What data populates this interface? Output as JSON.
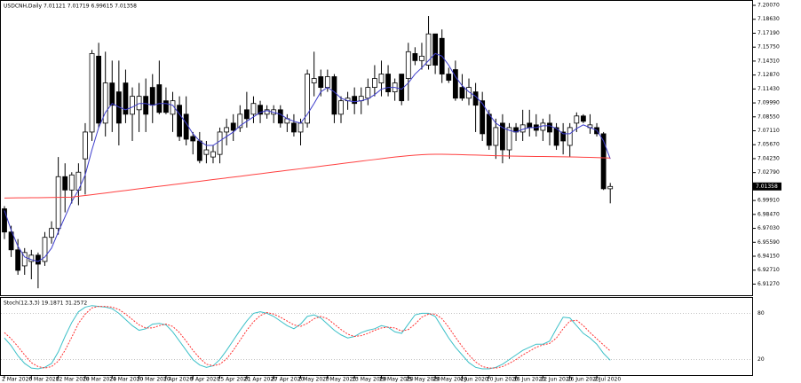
{
  "chart_data": [
    {
      "type": "candlestick",
      "title": "USDCNH,Daily  7.01121 7.01719 6.99615 7.01358",
      "categories": [
        "2 Mar 2020",
        null,
        null,
        null,
        "6 Mar 2020",
        null,
        null,
        null,
        "12 Mar 2020",
        null,
        null,
        null,
        "18 Mar 2020",
        null,
        null,
        null,
        "24 Mar 2020",
        null,
        null,
        null,
        "30 Mar 2020",
        null,
        null,
        null,
        "3 Apr 2020",
        null,
        null,
        null,
        "9 Apr 2020",
        null,
        null,
        null,
        "15 Apr 2020",
        null,
        null,
        null,
        "21 Apr 2020",
        null,
        null,
        null,
        "27 Apr 2020",
        null,
        null,
        null,
        "1 May 2020",
        null,
        null,
        null,
        "7 May 2020",
        null,
        null,
        null,
        "13 May 2020",
        null,
        null,
        null,
        "19 May 2020",
        null,
        null,
        null,
        "25 May 2020",
        null,
        null,
        null,
        "29 May 2020",
        null,
        null,
        null,
        "4 Jun 2020",
        null,
        null,
        null,
        "10 Jun 2020",
        null,
        null,
        null,
        "16 Jun 2020",
        null,
        null,
        null,
        "22 Jun 2020",
        null,
        null,
        null,
        "26 Jun 2020",
        null,
        null,
        null,
        "2 Jul 2020",
        null,
        null
      ],
      "ohlc": [
        [
          6.9905,
          6.9933,
          6.9592,
          6.9665
        ],
        [
          6.9665,
          6.973,
          6.9407,
          6.9481
        ],
        [
          6.9481,
          6.9592,
          6.9223,
          6.9269
        ],
        [
          6.9315,
          6.9499,
          6.9223,
          6.9453
        ],
        [
          6.9361,
          6.9481,
          6.9177,
          6.9426
        ],
        [
          6.9426,
          6.9453,
          6.9084,
          6.9333
        ],
        [
          6.9361,
          6.9665,
          6.9315,
          6.961
        ],
        [
          6.961,
          6.9776,
          6.9545,
          6.9702
        ],
        [
          6.9702,
          7.044,
          6.9638,
          7.0237
        ],
        [
          7.0237,
          7.0375,
          6.9868,
          7.0099
        ],
        [
          7.0099,
          7.0283,
          6.996,
          7.0255
        ],
        [
          7.0099,
          7.0375,
          6.9942,
          7.0283
        ],
        [
          7.0421,
          7.079,
          7.0053,
          7.0698
        ],
        [
          7.0698,
          7.1546,
          7.0606,
          7.1509
        ],
        [
          7.1482,
          7.162,
          7.0744,
          7.079
        ],
        [
          7.079,
          7.1528,
          7.0652,
          7.1205
        ],
        [
          7.1205,
          7.1436,
          7.0698,
          7.0975
        ],
        [
          7.1113,
          7.1436,
          7.056,
          7.079
        ],
        [
          7.1205,
          7.1343,
          7.079,
          7.0882
        ],
        [
          7.0882,
          7.1159,
          7.0606,
          7.1067
        ],
        [
          7.0928,
          7.1205,
          7.0698,
          7.1067
        ],
        [
          7.1067,
          7.1251,
          7.0698,
          7.0882
        ],
        [
          7.1159,
          7.1297,
          7.079,
          7.0975
        ],
        [
          7.1187,
          7.1436,
          7.0882,
          7.0901
        ],
        [
          7.1021,
          7.1159,
          7.0882,
          7.0901
        ],
        [
          7.0882,
          7.1113,
          7.0698,
          7.1021
        ],
        [
          7.0975,
          7.1067,
          7.0606,
          7.0652
        ],
        [
          7.0882,
          7.1067,
          7.056,
          7.0624
        ],
        [
          7.0652,
          7.0698,
          7.0467,
          7.0606
        ],
        [
          7.0606,
          7.0698,
          7.0375,
          7.0403
        ],
        [
          7.0467,
          7.0606,
          7.0375,
          7.0514
        ],
        [
          7.044,
          7.056,
          7.0375,
          7.0495
        ],
        [
          7.0467,
          7.0744,
          7.0375,
          7.0698
        ],
        [
          7.0698,
          7.0836,
          7.056,
          7.0744
        ],
        [
          7.079,
          7.0882,
          7.0606,
          7.0716
        ],
        [
          7.0744,
          7.0975,
          7.0698,
          7.0882
        ],
        [
          7.0928,
          7.1113,
          7.0744,
          7.0836
        ],
        [
          7.0882,
          7.1067,
          7.079,
          7.0993
        ],
        [
          7.0975,
          7.1021,
          7.079,
          7.0882
        ],
        [
          7.0882,
          7.0975,
          7.0836,
          7.0928
        ],
        [
          7.0882,
          7.0975,
          7.079,
          7.0928
        ],
        [
          7.0928,
          7.0975,
          7.0744,
          7.079
        ],
        [
          7.079,
          7.0882,
          7.0698,
          7.0836
        ],
        [
          7.079,
          7.0882,
          7.0652,
          7.0698
        ],
        [
          7.0698,
          7.0836,
          7.056,
          7.079
        ],
        [
          7.079,
          7.1343,
          7.0744,
          7.1297
        ],
        [
          7.1205,
          7.1528,
          7.1067,
          7.1251
        ],
        [
          7.127,
          7.1343,
          7.1067,
          7.1159
        ],
        [
          7.1159,
          7.1343,
          7.1113,
          7.127
        ],
        [
          7.127,
          7.1297,
          7.079,
          7.0882
        ],
        [
          7.0882,
          7.1067,
          7.079,
          7.1021
        ],
        [
          7.1021,
          7.1113,
          7.0928,
          7.1048
        ],
        [
          7.1067,
          7.1159,
          7.0882,
          7.0993
        ],
        [
          7.1021,
          7.1159,
          7.0882,
          7.1067
        ],
        [
          7.1048,
          7.1251,
          7.0975,
          7.1159
        ],
        [
          7.1159,
          7.1389,
          7.1067,
          7.1251
        ],
        [
          7.1205,
          7.1436,
          7.1067,
          7.1297
        ],
        [
          7.1297,
          7.1389,
          7.1067,
          7.1113
        ],
        [
          7.1113,
          7.1251,
          7.1021,
          7.1205
        ],
        [
          7.1297,
          7.1297,
          7.0975,
          7.1021
        ],
        [
          7.1251,
          7.162,
          7.1021,
          7.1528
        ],
        [
          7.1509,
          7.1574,
          7.1389,
          7.1436
        ],
        [
          7.1436,
          7.162,
          7.1343,
          7.1482
        ],
        [
          7.1389,
          7.1897,
          7.1343,
          7.1712
        ],
        [
          7.1712,
          7.1712,
          7.1297,
          7.1389
        ],
        [
          7.1666,
          7.1758,
          7.1205,
          7.1297
        ],
        [
          7.1297,
          7.1362,
          7.1205,
          7.1233
        ],
        [
          7.1343,
          7.1436,
          7.1021,
          7.1048
        ],
        [
          7.1159,
          7.1297,
          7.1021,
          7.1048
        ],
        [
          7.1048,
          7.1251,
          7.0975,
          7.1159
        ],
        [
          7.1113,
          7.1205,
          7.0698,
          7.0975
        ],
        [
          7.1021,
          7.1113,
          7.0606,
          7.068
        ],
        [
          7.0882,
          7.0928,
          7.0514,
          7.056
        ],
        [
          7.056,
          7.0836,
          7.0421,
          7.0744
        ],
        [
          7.079,
          7.0882,
          7.0375,
          7.0514
        ],
        [
          7.0514,
          7.079,
          7.0421,
          7.0744
        ],
        [
          7.0744,
          7.079,
          7.0606,
          7.0698
        ],
        [
          7.0698,
          7.0928,
          7.0606,
          7.0772
        ],
        [
          7.079,
          7.0928,
          7.0652,
          7.0744
        ],
        [
          7.0772,
          7.0882,
          7.0652,
          7.0716
        ],
        [
          7.0716,
          7.0836,
          7.0606,
          7.079
        ],
        [
          7.079,
          7.0882,
          7.056,
          7.0698
        ],
        [
          7.0744,
          7.079,
          7.0514,
          7.056
        ],
        [
          7.0698,
          7.079,
          7.0467,
          7.0606
        ],
        [
          7.056,
          7.079,
          7.044,
          7.0744
        ],
        [
          7.079,
          7.0901,
          7.0698,
          7.0864
        ],
        [
          7.0864,
          7.0882,
          7.079,
          7.0809
        ],
        [
          7.0744,
          7.0882,
          7.068,
          7.0772
        ],
        [
          7.0744,
          7.079,
          7.0652,
          7.068
        ],
        [
          7.068,
          7.0698,
          7.0099,
          7.0112
        ],
        [
          7.01121,
          7.01719,
          6.99615,
          7.01358
        ]
      ],
      "overlays": [
        {
          "color": "#3c3ccc",
          "values": [
            6.9887,
            6.9684,
            6.9518,
            6.9407,
            6.938,
            6.9361,
            6.9407,
            6.9499,
            6.9665,
            6.9822,
            6.9979,
            7.0099,
            7.0255,
            7.0514,
            7.0744,
            7.0901,
            7.0993,
            7.0956,
            7.0928,
            7.0956,
            7.0993,
            7.0993,
            7.0975,
            7.0993,
            7.0993,
            7.0975,
            7.0882,
            7.079,
            7.068,
            7.0606,
            7.056,
            7.056,
            7.0606,
            7.0652,
            7.0698,
            7.0763,
            7.0809,
            7.0855,
            7.0901,
            7.0919,
            7.0901,
            7.0882,
            7.0836,
            7.0809,
            7.079,
            7.0882,
            7.0993,
            7.1113,
            7.1159,
            7.1113,
            7.1048,
            7.1021,
            7.1011,
            7.1021,
            7.1039,
            7.1085,
            7.1141,
            7.1159,
            7.1159,
            7.1141,
            7.1205,
            7.1297,
            7.1362,
            7.1436,
            7.1509,
            7.1482,
            7.1389,
            7.127,
            7.1177,
            7.1113,
            7.1067,
            7.0993,
            7.0882,
            7.079,
            7.0744,
            7.0716,
            7.0698,
            7.0726,
            7.0744,
            7.0744,
            7.0763,
            7.0763,
            7.0735,
            7.068,
            7.068,
            7.0735,
            7.0772,
            7.0744,
            7.0716,
            7.0606,
            7.0421
          ]
        },
        {
          "color": "#ff4040",
          "values": [
            7.0016,
            7.0017,
            7.0018,
            7.0018,
            7.0019,
            7.002,
            7.0021,
            7.0022,
            7.0023,
            7.0024,
            7.0025,
            7.0034,
            7.0042,
            7.0051,
            7.006,
            7.0068,
            7.0077,
            7.0086,
            7.0094,
            7.0103,
            7.0112,
            7.012,
            7.0129,
            7.0137,
            7.0146,
            7.0155,
            7.0163,
            7.0172,
            7.0181,
            7.0189,
            7.0198,
            7.0207,
            7.0215,
            7.0224,
            7.0233,
            7.0241,
            7.025,
            7.0259,
            7.0267,
            7.0276,
            7.0285,
            7.0293,
            7.0302,
            7.031,
            7.0319,
            7.0328,
            7.0336,
            7.0345,
            7.0354,
            7.0362,
            7.0371,
            7.038,
            7.0388,
            7.0397,
            7.0406,
            7.0414,
            7.0423,
            7.0432,
            7.044,
            7.0447,
            7.0453,
            7.0459,
            7.0464,
            7.0467,
            7.0468,
            7.0468,
            7.0467,
            7.0466,
            7.0464,
            7.0462,
            7.046,
            7.0458,
            7.0456,
            7.0454,
            7.0452,
            7.045,
            7.0449,
            7.0448,
            7.0447,
            7.0446,
            7.0445,
            7.0444,
            7.0443,
            7.0442,
            7.0441,
            7.044,
            7.0438,
            7.0436,
            7.0434,
            7.0432,
            7.043
          ]
        }
      ],
      "ylim": [
        6.9012,
        7.2053
      ],
      "yticks": [
        {
          "value": 7.2007,
          "label": "7.20070"
        },
        {
          "value": 7.1863,
          "label": "7.18630"
        },
        {
          "value": 7.1719,
          "label": "7.17190"
        },
        {
          "value": 7.1575,
          "label": "7.15750"
        },
        {
          "value": 7.1431,
          "label": "7.14310"
        },
        {
          "value": 7.1287,
          "label": "7.12870"
        },
        {
          "value": 7.1143,
          "label": "7.11430"
        },
        {
          "value": 7.0999,
          "label": "7.09990"
        },
        {
          "value": 7.0855,
          "label": "7.08550"
        },
        {
          "value": 7.0711,
          "label": "7.07110"
        },
        {
          "value": 7.0567,
          "label": "7.05670"
        },
        {
          "value": 7.0423,
          "label": "7.04230"
        },
        {
          "value": 7.0279,
          "label": "7.02790"
        },
        {
          "value": 6.9991,
          "label": "6.99910"
        },
        {
          "value": 6.9847,
          "label": "6.98470"
        },
        {
          "value": 6.9703,
          "label": "6.97030"
        },
        {
          "value": 6.9559,
          "label": "6.95590"
        },
        {
          "value": 6.9415,
          "label": "6.94150"
        },
        {
          "value": 6.9271,
          "label": "6.92710"
        },
        {
          "value": 6.9127,
          "label": "6.91270"
        }
      ]
    },
    {
      "type": "line",
      "title": "Stoch(12,3,3) 19.1871 31.2572",
      "series": [
        {
          "color": "#3cc0c8",
          "style": "solid",
          "values": [
            48,
            38,
            25,
            15,
            9,
            8,
            10,
            15,
            30,
            50,
            68,
            82,
            88,
            90,
            89,
            88,
            86,
            80,
            72,
            64,
            58,
            60,
            66,
            67,
            65,
            56,
            44,
            32,
            20,
            13,
            10,
            12,
            20,
            32,
            45,
            58,
            70,
            80,
            82,
            80,
            76,
            70,
            64,
            60,
            66,
            76,
            78,
            74,
            66,
            58,
            52,
            48,
            50,
            55,
            58,
            60,
            64,
            62,
            56,
            54,
            66,
            78,
            80,
            80,
            76,
            62,
            48,
            36,
            26,
            16,
            10,
            8,
            8,
            10,
            14,
            20,
            26,
            32,
            36,
            40,
            40,
            44,
            60,
            75,
            74,
            64,
            54,
            48,
            40,
            28,
            19.1871
          ]
        },
        {
          "color": "#ff3030",
          "style": "dotted",
          "values": [
            55,
            47,
            37,
            26,
            16,
            11,
            9,
            11,
            18,
            32,
            49,
            67,
            79,
            87,
            89,
            89,
            88,
            85,
            79,
            72,
            65,
            61,
            61,
            64,
            66,
            63,
            55,
            44,
            32,
            22,
            14,
            12,
            14,
            21,
            32,
            45,
            58,
            69,
            77,
            81,
            79,
            75,
            70,
            65,
            63,
            67,
            73,
            76,
            73,
            66,
            59,
            53,
            50,
            51,
            54,
            58,
            61,
            62,
            61,
            57,
            59,
            66,
            75,
            79,
            79,
            73,
            62,
            49,
            37,
            26,
            17,
            11,
            9,
            9,
            11,
            15,
            20,
            26,
            31,
            36,
            39,
            41,
            48,
            60,
            70,
            71,
            64,
            55,
            47,
            39,
            31.2572
          ]
        }
      ],
      "ylim": [
        0,
        100
      ],
      "yticks": [
        20,
        80
      ]
    }
  ]
}
